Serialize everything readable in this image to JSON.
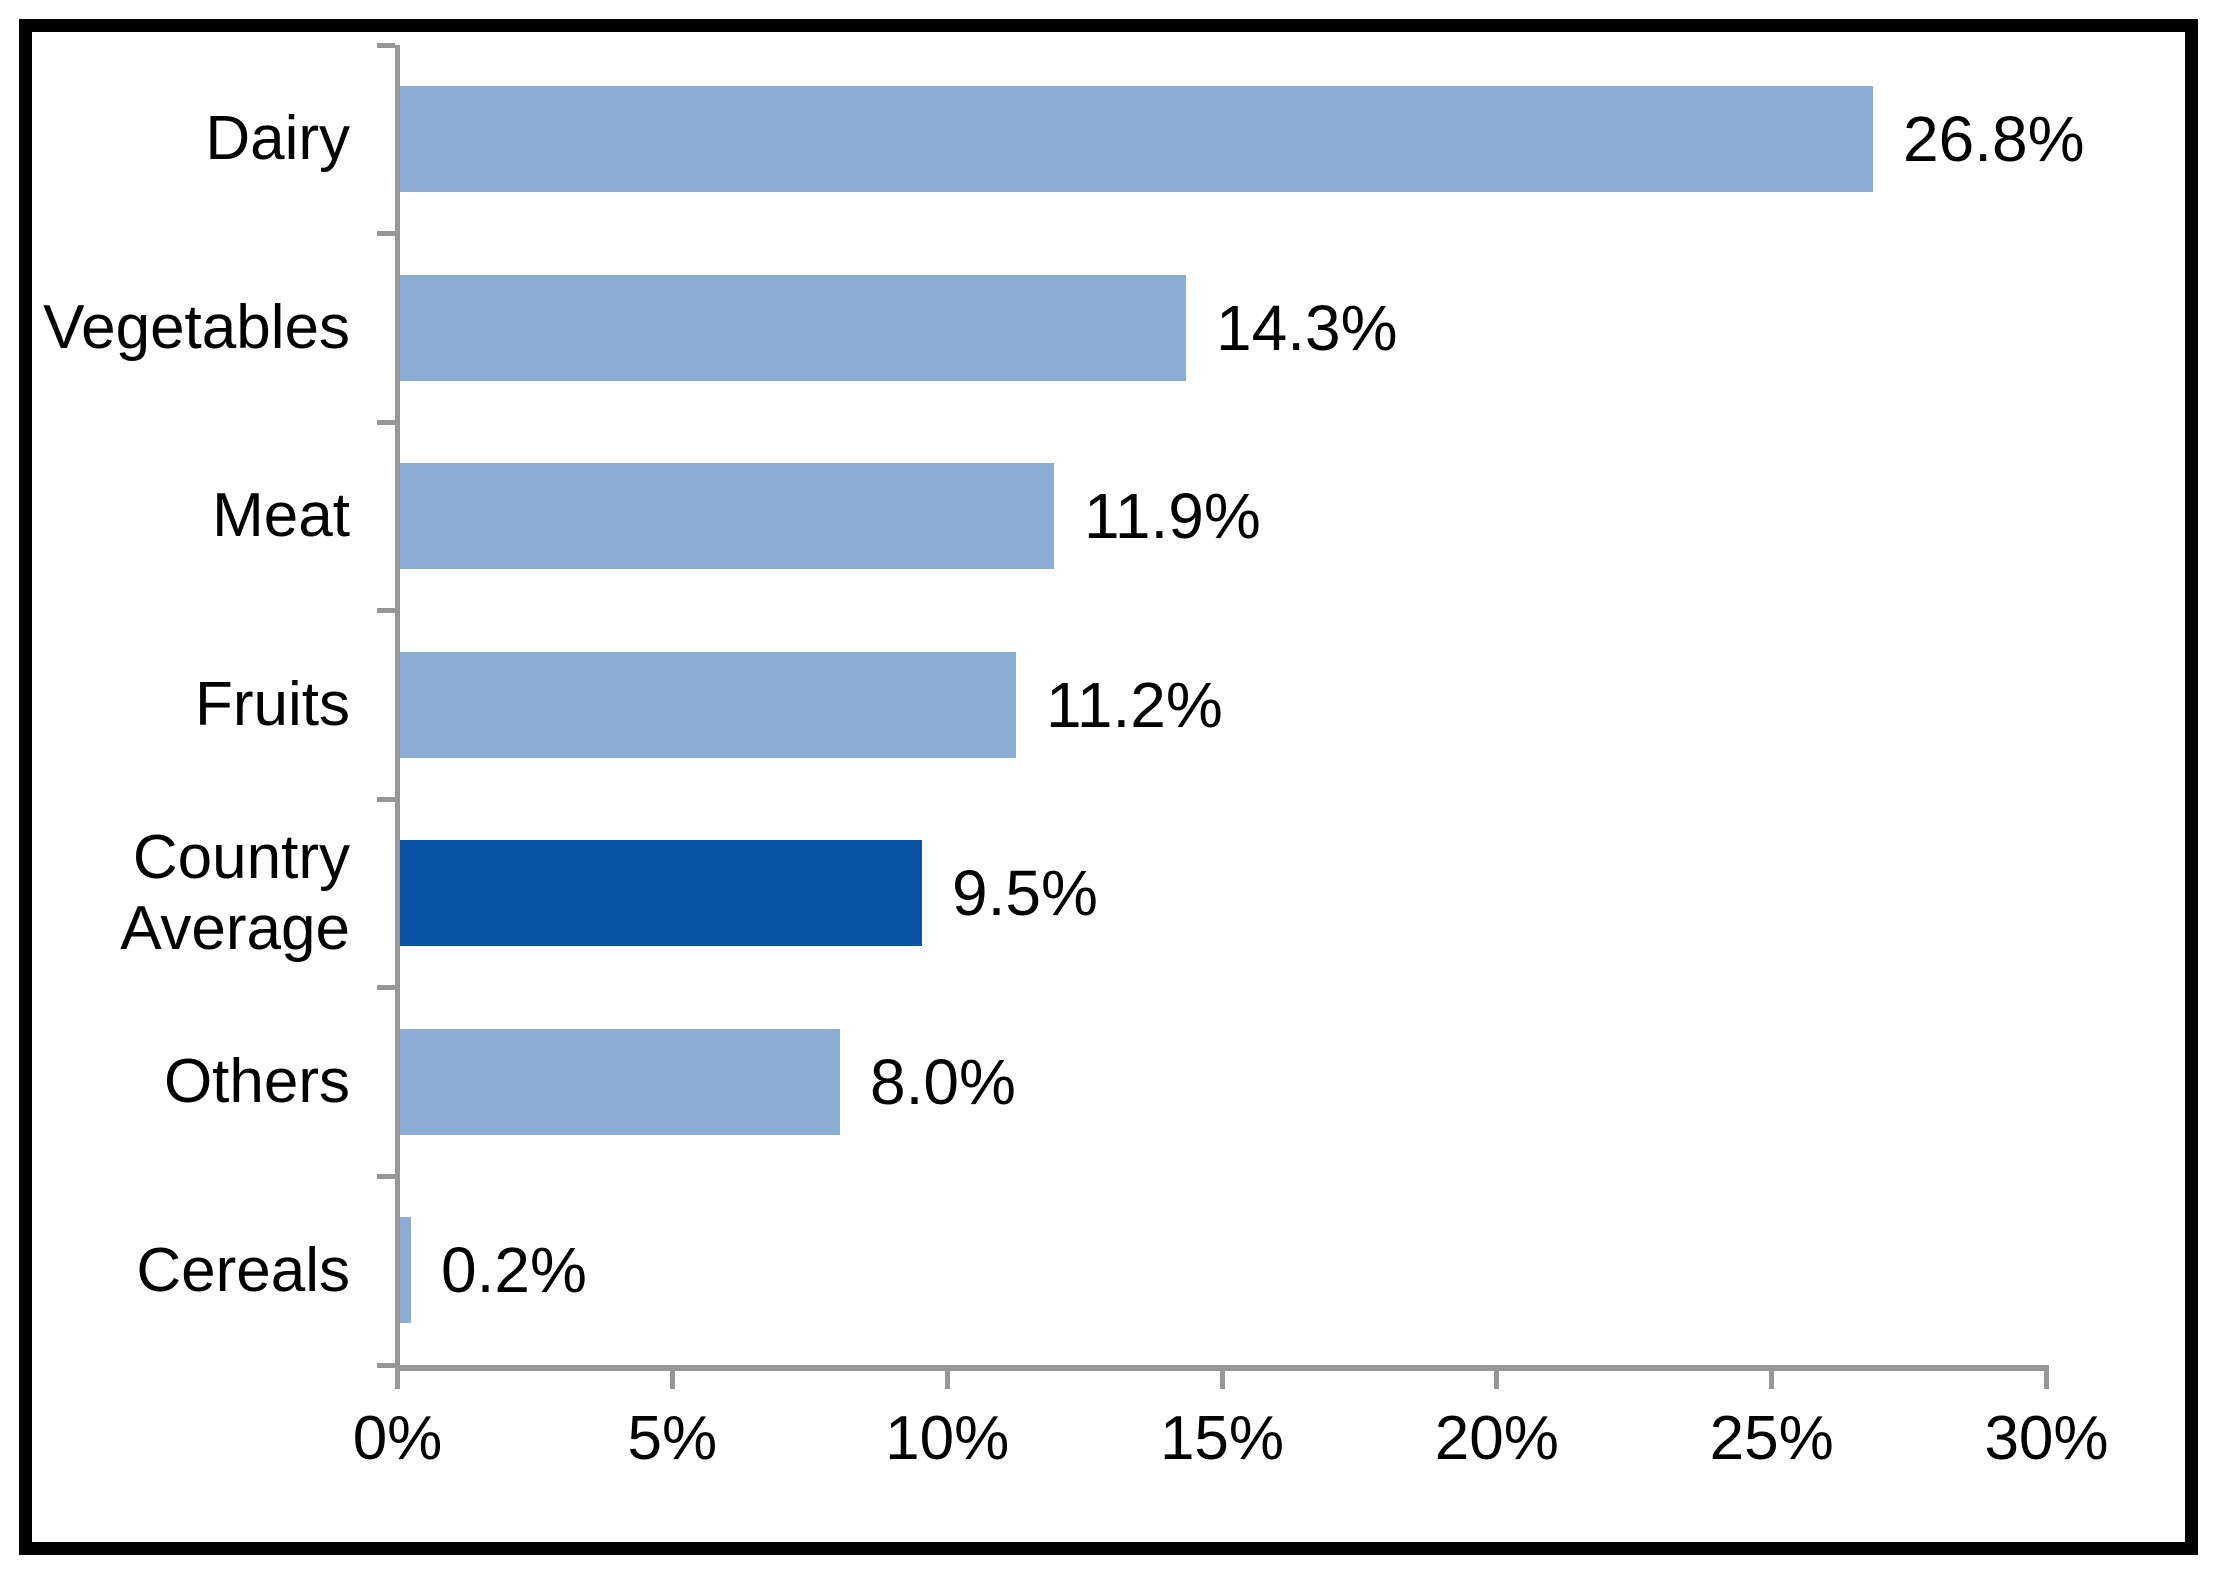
{
  "chart_data": {
    "type": "bar",
    "orientation": "horizontal",
    "title": "",
    "categories": [
      "Dairy",
      "Vegetables",
      "Meat",
      "Fruits",
      "Country Average",
      "Others",
      "Cereals"
    ],
    "values": [
      26.8,
      14.3,
      11.9,
      11.2,
      9.5,
      8.0,
      0.2
    ],
    "data_labels": [
      "26.8%",
      "14.3%",
      "11.9%",
      "11.2%",
      "9.5%",
      "8.0%",
      "0.2%"
    ],
    "highlight_category": "Country Average",
    "highlight_index": 4,
    "x_axis": {
      "tick_labels": [
        "0%",
        "5%",
        "10%",
        "15%",
        "20%",
        "25%",
        "30%"
      ],
      "min": 0,
      "max": 30,
      "step": 5,
      "unit": "%"
    },
    "legend": "none",
    "grid": false,
    "colors": {
      "bar": "#8BACD3",
      "highlight_bar": "#0B54A4",
      "axis": "#969696",
      "text": "#000000",
      "frame_border": "#000000",
      "background": "#FFFFFF"
    }
  }
}
